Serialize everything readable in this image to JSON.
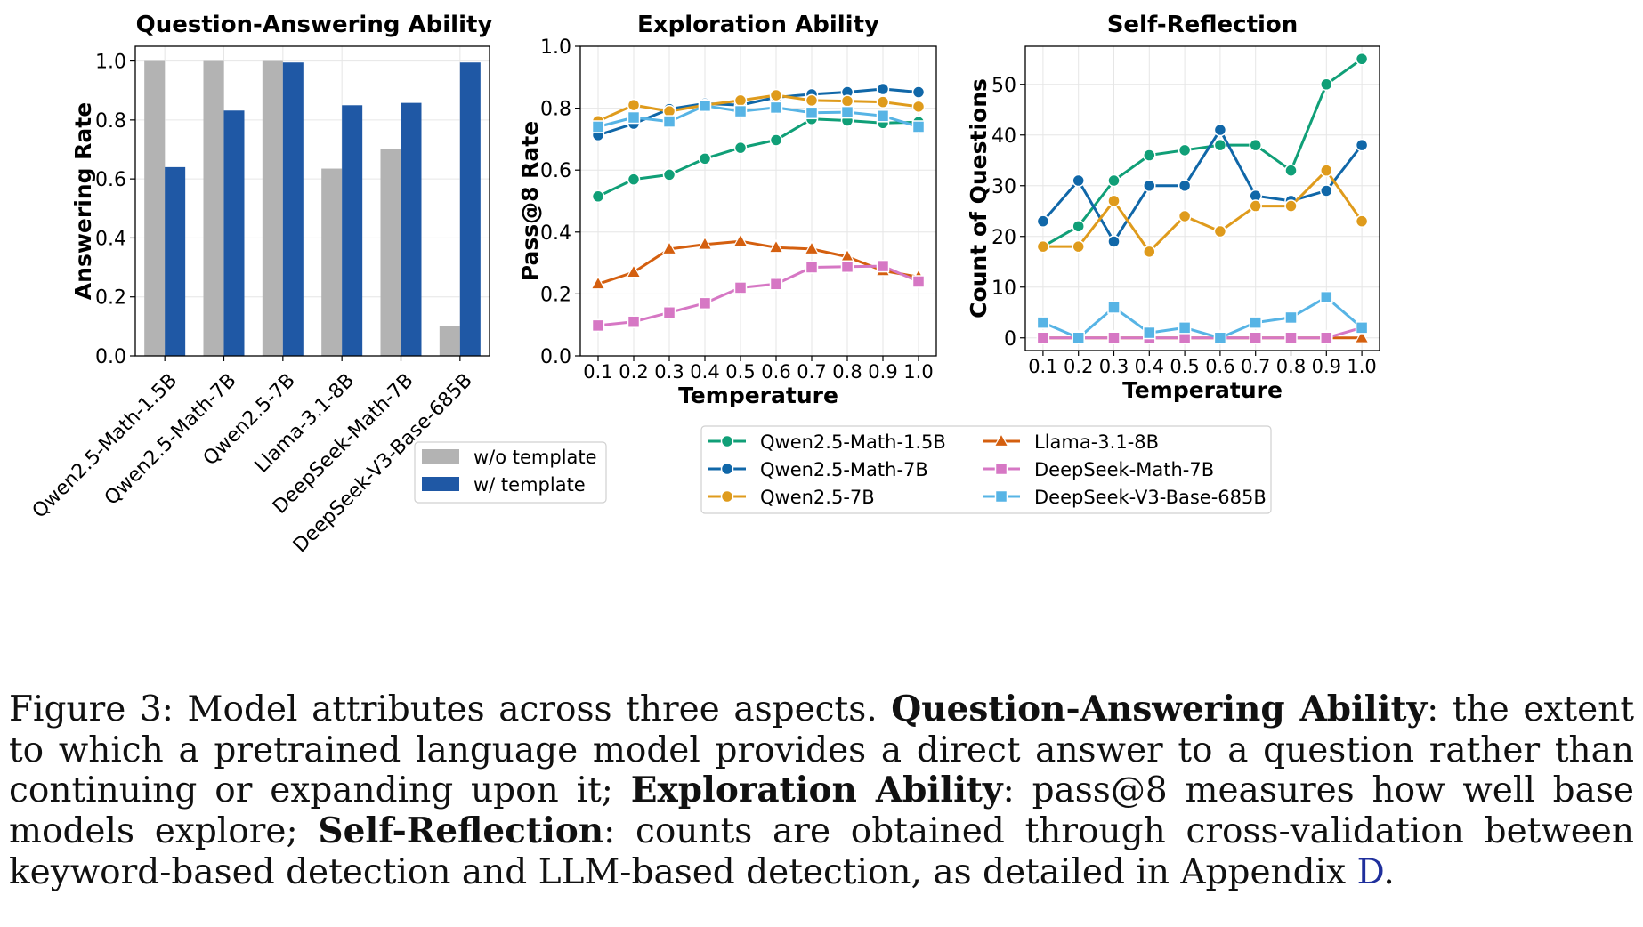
{
  "chart_data": [
    {
      "type": "bar",
      "title": "Question-Answering Ability",
      "xlabel": "",
      "ylabel": "Answering Rate",
      "ylim": [
        0,
        1.05
      ],
      "yticks": [
        "0.0",
        "0.2",
        "0.4",
        "0.6",
        "0.8",
        "1.0"
      ],
      "categories": [
        "Qwen2.5-Math-1.5B",
        "Qwen2.5-Math-7B",
        "Qwen2.5-7B",
        "Llama-3.1-8B",
        "DeepSeek-Math-7B",
        "DeepSeek-V3-Base-685B"
      ],
      "series": [
        {
          "name": "w/o template",
          "color": "#b3b3b3",
          "values": [
            1.0,
            1.0,
            1.0,
            0.635,
            0.7,
            0.1
          ]
        },
        {
          "name": "w/ template",
          "color": "#1f58a5",
          "values": [
            0.64,
            0.832,
            0.995,
            0.85,
            0.858,
            0.995
          ]
        }
      ],
      "grid": true,
      "legend_position": "bottom-right"
    },
    {
      "type": "line",
      "title": "Exploration Ability",
      "xlabel": "Temperature",
      "ylabel": "Pass@8 Rate",
      "ylim": [
        0,
        1.0
      ],
      "yticks": [
        "0.0",
        "0.2",
        "0.4",
        "0.6",
        "0.8",
        "1.0"
      ],
      "x": [
        "0.1",
        "0.2",
        "0.3",
        "0.4",
        "0.5",
        "0.6",
        "0.7",
        "0.8",
        "0.9",
        "1.0"
      ],
      "series": [
        {
          "name": "Qwen2.5-Math-1.5B",
          "color": "#109f77",
          "marker": "circle",
          "values": [
            0.515,
            0.57,
            0.585,
            0.637,
            0.672,
            0.697,
            0.765,
            0.76,
            0.752,
            0.755
          ]
        },
        {
          "name": "Qwen2.5-Math-7B",
          "color": "#1067a8",
          "marker": "circle",
          "values": [
            0.713,
            0.75,
            0.797,
            0.815,
            0.81,
            0.835,
            0.845,
            0.852,
            0.862,
            0.852
          ]
        },
        {
          "name": "Qwen2.5-7B",
          "color": "#df9b1c",
          "marker": "circle",
          "values": [
            0.758,
            0.81,
            0.79,
            0.81,
            0.825,
            0.842,
            0.825,
            0.823,
            0.82,
            0.805
          ]
        },
        {
          "name": "Llama-3.1-8B",
          "color": "#d45f0f",
          "marker": "triangle",
          "values": [
            0.232,
            0.27,
            0.345,
            0.36,
            0.37,
            0.35,
            0.345,
            0.32,
            0.275,
            0.255
          ]
        },
        {
          "name": "DeepSeek-Math-7B",
          "color": "#d677c4",
          "marker": "square",
          "values": [
            0.098,
            0.11,
            0.14,
            0.17,
            0.22,
            0.232,
            0.286,
            0.288,
            0.29,
            0.24
          ]
        },
        {
          "name": "DeepSeek-V3-Base-685B",
          "color": "#57b4e5",
          "marker": "square",
          "values": [
            0.74,
            0.77,
            0.757,
            0.808,
            0.79,
            0.802,
            0.785,
            0.787,
            0.775,
            0.74
          ]
        }
      ],
      "grid": true
    },
    {
      "type": "line",
      "title": "Self-Reflection",
      "xlabel": "Temperature",
      "ylabel": "Count of Questions",
      "ylim": [
        -2.5,
        57.5
      ],
      "yticks": [
        "0",
        "10",
        "20",
        "30",
        "40",
        "50"
      ],
      "x": [
        "0.1",
        "0.2",
        "0.3",
        "0.4",
        "0.5",
        "0.6",
        "0.7",
        "0.8",
        "0.9",
        "1.0"
      ],
      "series": [
        {
          "name": "Qwen2.5-Math-1.5B",
          "color": "#109f77",
          "marker": "circle",
          "values": [
            18,
            22,
            31,
            36,
            37,
            38,
            38,
            33,
            50,
            55
          ]
        },
        {
          "name": "Qwen2.5-Math-7B",
          "color": "#1067a8",
          "marker": "circle",
          "values": [
            23,
            31,
            19,
            30,
            30,
            41,
            28,
            27,
            29,
            38
          ]
        },
        {
          "name": "Qwen2.5-7B",
          "color": "#df9b1c",
          "marker": "circle",
          "values": [
            18,
            18,
            27,
            17,
            24,
            21,
            26,
            26,
            33,
            23
          ]
        },
        {
          "name": "Llama-3.1-8B",
          "color": "#d45f0f",
          "marker": "triangle",
          "values": [
            0,
            0,
            0,
            0,
            0,
            0,
            0,
            0,
            0,
            0
          ]
        },
        {
          "name": "DeepSeek-Math-7B",
          "color": "#d677c4",
          "marker": "square",
          "values": [
            0,
            0,
            0,
            0,
            0,
            0,
            0,
            0,
            0,
            2
          ]
        },
        {
          "name": "DeepSeek-V3-Base-685B",
          "color": "#57b4e5",
          "marker": "square",
          "values": [
            3,
            0,
            6,
            1,
            2,
            0,
            3,
            4,
            8,
            2
          ]
        }
      ],
      "grid": true
    }
  ],
  "line_legend": [
    "Qwen2.5-Math-1.5B",
    "Qwen2.5-Math-7B",
    "Qwen2.5-7B",
    "Llama-3.1-8B",
    "DeepSeek-Math-7B",
    "DeepSeek-V3-Base-685B"
  ],
  "caption": {
    "prefix": "Figure 3: Model attributes across three aspects.",
    "term1": "Question-Answering Ability",
    "text1": ": the extent to which a pretrained language model provides a direct answer to a question rather than continuing or expanding upon it;",
    "term2": "Exploration Ability",
    "text2": ": pass@8 measures how well base models explore;",
    "term3": "Self-Reflection",
    "text3": ": counts are obtained through cross-validation between keyword-based detection and LLM-based detection, as detailed in Appendix",
    "appendix_ref": "D",
    "end": "."
  }
}
